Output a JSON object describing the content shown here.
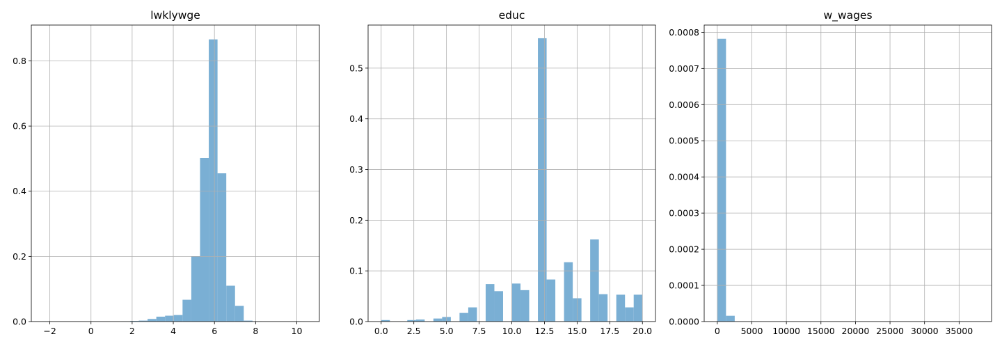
{
  "chart_data": [
    {
      "type": "bar",
      "title": "lwklywge",
      "xlabel": "",
      "ylabel": "",
      "xlim": [
        -2.9,
        11.1
      ],
      "ylim": [
        0,
        0.91
      ],
      "grid": true,
      "bar_color": "#7aafd4",
      "xticks": [
        -2,
        0,
        2,
        4,
        6,
        8,
        10
      ],
      "xtick_labels": [
        "−2",
        "0",
        "2",
        "4",
        "6",
        "8",
        "10"
      ],
      "yticks": [
        0.0,
        0.2,
        0.4,
        0.6,
        0.8
      ],
      "ytick_labels": [
        "0.0",
        "0.2",
        "0.4",
        "0.6",
        "0.8"
      ],
      "bin_edges": [
        -2.35,
        -1.925,
        -1.5,
        -1.075,
        -0.65,
        -0.225,
        0.2,
        0.625,
        1.05,
        1.475,
        1.9,
        2.325,
        2.75,
        3.175,
        3.6,
        4.025,
        4.45,
        4.875,
        5.3,
        5.725,
        6.15,
        6.575,
        7.0,
        7.425,
        7.85,
        8.275,
        8.7,
        9.125,
        9.55,
        9.975,
        10.4
      ],
      "values": [
        0.001,
        0.0,
        0.0,
        0.0,
        0.0,
        0.0,
        0.0,
        0.0,
        0.0,
        0.001,
        0.002,
        0.003,
        0.008,
        0.015,
        0.018,
        0.02,
        0.067,
        0.2,
        0.502,
        0.866,
        0.455,
        0.11,
        0.048,
        0.003,
        0.001,
        0.0,
        0.0,
        0.0,
        0.0,
        0.001
      ]
    },
    {
      "type": "bar",
      "title": "educ",
      "xlabel": "",
      "ylabel": "",
      "xlim": [
        -1.0,
        21.0
      ],
      "ylim": [
        0,
        0.585
      ],
      "grid": true,
      "bar_color": "#7aafd4",
      "xticks": [
        0.0,
        2.5,
        5.0,
        7.5,
        10.0,
        12.5,
        15.0,
        17.5,
        20.0
      ],
      "xtick_labels": [
        "0.0",
        "2.5",
        "5.0",
        "7.5",
        "10.0",
        "12.5",
        "15.0",
        "17.5",
        "20.0"
      ],
      "yticks": [
        0.0,
        0.1,
        0.2,
        0.3,
        0.4,
        0.5
      ],
      "ytick_labels": [
        "0.0",
        "0.1",
        "0.2",
        "0.3",
        "0.4",
        "0.5"
      ],
      "bin_edges": [
        0.0,
        0.6667,
        1.3333,
        2.0,
        2.6667,
        3.3333,
        4.0,
        4.6667,
        5.3333,
        6.0,
        6.6667,
        7.3333,
        8.0,
        8.6667,
        9.3333,
        10.0,
        10.6667,
        11.3333,
        12.0,
        12.6667,
        13.3333,
        14.0,
        14.6667,
        15.3333,
        16.0,
        16.6667,
        17.3333,
        18.0,
        18.6667,
        19.3333,
        20.0
      ],
      "values": [
        0.003,
        0.0,
        0.0,
        0.003,
        0.004,
        0.0,
        0.006,
        0.009,
        0.0,
        0.017,
        0.028,
        0.0,
        0.074,
        0.06,
        0.0,
        0.075,
        0.062,
        0.0,
        0.559,
        0.083,
        0.0,
        0.117,
        0.046,
        0.0,
        0.162,
        0.054,
        0.0,
        0.053,
        0.028,
        0.053
      ]
    },
    {
      "type": "bar",
      "title": "w_wages",
      "xlabel": "",
      "ylabel": "",
      "xlim": [
        -1900,
        39700
      ],
      "ylim": [
        0,
        0.00082
      ],
      "grid": true,
      "bar_color": "#7aafd4",
      "xticks": [
        0,
        5000,
        10000,
        15000,
        20000,
        25000,
        30000,
        35000
      ],
      "xtick_labels": [
        "0",
        "5000",
        "10000",
        "15000",
        "20000",
        "25000",
        "30000",
        "35000"
      ],
      "yticks": [
        0.0,
        0.0001,
        0.0002,
        0.0003,
        0.0004,
        0.0005,
        0.0006,
        0.0007,
        0.0008
      ],
      "ytick_labels": [
        "0.0000",
        "0.0001",
        "0.0002",
        "0.0003",
        "0.0004",
        "0.0005",
        "0.0006",
        "0.0007",
        "0.0008"
      ],
      "bin_edges": [
        0,
        1260,
        2520,
        3780,
        5040,
        6300,
        7560,
        8820,
        10080,
        11340,
        12600,
        13860,
        15120,
        16380,
        17640,
        18900,
        20160,
        21420,
        22680,
        23940,
        25200,
        26460,
        27720,
        28980,
        30240,
        31500,
        32760,
        34020,
        35280,
        36540,
        37800
      ],
      "values": [
        0.000782,
        1.6e-05,
        3e-07,
        1e-07,
        0,
        0,
        0,
        0,
        0,
        0,
        0,
        0,
        0,
        0,
        0,
        0,
        0,
        0,
        0,
        0,
        0,
        0,
        0,
        0,
        0,
        0,
        0,
        0,
        0,
        1e-07
      ]
    }
  ]
}
